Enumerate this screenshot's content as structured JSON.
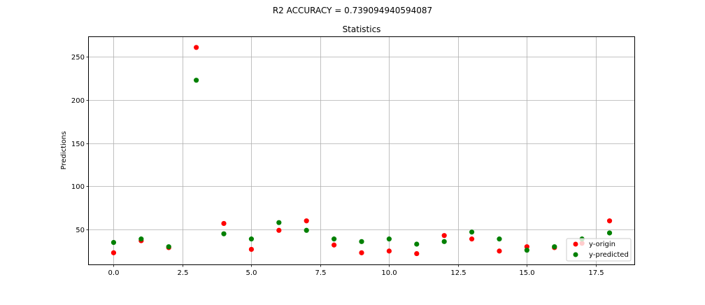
{
  "figure": {
    "suptitle": "R2 ACCURACY = 0.739094940594087"
  },
  "chart_data": {
    "type": "scatter",
    "title": "Statistics",
    "xlabel": "",
    "ylabel": "Predictions",
    "xlim": [
      -0.9,
      18.9
    ],
    "ylim": [
      9.5,
      273
    ],
    "xticks": [
      0.0,
      2.5,
      5.0,
      7.5,
      10.0,
      12.5,
      15.0,
      17.5
    ],
    "xtick_labels": [
      "0.0",
      "2.5",
      "5.0",
      "7.5",
      "10.0",
      "12.5",
      "15.0",
      "17.5"
    ],
    "yticks": [
      50,
      100,
      150,
      200,
      250
    ],
    "ytick_labels": [
      "50",
      "100",
      "150",
      "200",
      "250"
    ],
    "grid": true,
    "legend_position": "lower-right",
    "series": [
      {
        "name": "y-origin",
        "color": "#ff0000",
        "x": [
          0,
          1,
          2,
          3,
          4,
          5,
          6,
          7,
          8,
          9,
          10,
          11,
          12,
          13,
          14,
          15,
          16,
          17,
          18
        ],
        "values": [
          23,
          37,
          29,
          261,
          57,
          27,
          49,
          60,
          32,
          23,
          25,
          22,
          43,
          39,
          25,
          30,
          29,
          34,
          60
        ]
      },
      {
        "name": "y-predicted",
        "color": "#008000",
        "x": [
          0,
          1,
          2,
          3,
          4,
          5,
          6,
          7,
          8,
          9,
          10,
          11,
          12,
          13,
          14,
          15,
          16,
          17,
          18
        ],
        "values": [
          35,
          39,
          30,
          223,
          45,
          39,
          58,
          49,
          39,
          36,
          39,
          33,
          36,
          47,
          39,
          26,
          30,
          39,
          46
        ]
      }
    ]
  }
}
